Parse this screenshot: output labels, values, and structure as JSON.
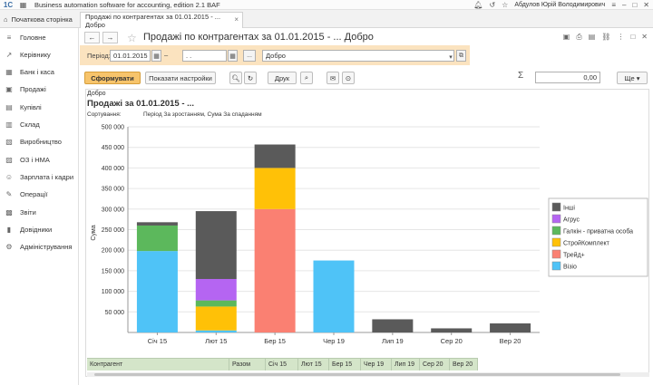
{
  "titlebar": {
    "logo": "1C",
    "app_title": "Business automation software for accounting, edition 2.1 BAF",
    "user": "Абдулов Юрій Володимирович"
  },
  "tabs": {
    "home_label": "Початкова сторінка",
    "doc_label": "Продажі по контрагентах за 01.01.2015 - ... Добро"
  },
  "sidebar": {
    "items": [
      {
        "label": "Головне",
        "icon": "menu-icon",
        "glyph": "≡"
      },
      {
        "label": "Керівнику",
        "icon": "trend-icon",
        "glyph": "↗"
      },
      {
        "label": "Банк і каса",
        "icon": "bank-icon",
        "glyph": "▦"
      },
      {
        "label": "Продажі",
        "icon": "cart-icon",
        "glyph": "▣"
      },
      {
        "label": "Купівлі",
        "icon": "purchase-icon",
        "glyph": "▤"
      },
      {
        "label": "Склад",
        "icon": "warehouse-icon",
        "glyph": "▥"
      },
      {
        "label": "Виробництво",
        "icon": "factory-icon",
        "glyph": "▧"
      },
      {
        "label": "ОЗ і НМА",
        "icon": "assets-icon",
        "glyph": "▨"
      },
      {
        "label": "Зарплата і кадри",
        "icon": "people-icon",
        "glyph": "☺"
      },
      {
        "label": "Операції",
        "icon": "operations-icon",
        "glyph": "✎"
      },
      {
        "label": "Звіти",
        "icon": "reports-icon",
        "glyph": "▩"
      },
      {
        "label": "Довідники",
        "icon": "books-icon",
        "glyph": "▮"
      },
      {
        "label": "Адміністрування",
        "icon": "admin-icon",
        "glyph": "⚙"
      }
    ]
  },
  "document": {
    "title": "Продажі по контрагентах за 01.01.2015 - ... Добро",
    "period_label": "Період:",
    "date_from": "01.01.2015",
    "date_to": "  .  .",
    "dash": "–",
    "ellipsis": "...",
    "org": "Добро",
    "form_button": "Сформувати",
    "settings_button": "Показати настройки",
    "print_button": "Друк",
    "sigma": "Σ",
    "sum_value": "0,00",
    "more_button": "Ще"
  },
  "report": {
    "org_small": "Добро",
    "header": "Продажі за 01.01.2015 - ...",
    "sort_label": "Сортування:",
    "sort_value": "Період За зростанням, Сума За спаданням"
  },
  "chart_data": {
    "type": "bar",
    "stacked": true,
    "ylabel": "Сума",
    "ylim": [
      0,
      500000
    ],
    "yticks": [
      50000,
      100000,
      150000,
      200000,
      250000,
      300000,
      350000,
      400000,
      450000,
      500000
    ],
    "ytick_labels": [
      "50 000",
      "100 000",
      "150 000",
      "200 000",
      "250 000",
      "300 000",
      "350 000",
      "400 000",
      "450 000",
      "500 000"
    ],
    "categories": [
      "Січ 15",
      "Лют 15",
      "Бер 15",
      "Чер 19",
      "Лип 19",
      "Сер 20",
      "Вер 20"
    ],
    "legend_position": "right",
    "series": [
      {
        "name": "Візіо",
        "color": "#4fc3f7",
        "values": [
          198000,
          5000,
          0,
          175000,
          0,
          0,
          0
        ]
      },
      {
        "name": "Трейд+",
        "color": "#fa8072",
        "values": [
          0,
          0,
          300000,
          0,
          0,
          0,
          0
        ]
      },
      {
        "name": "СтройКомплект",
        "color": "#ffc107",
        "values": [
          0,
          58000,
          100000,
          0,
          0,
          0,
          0
        ]
      },
      {
        "name": "Галкін - приватна особа",
        "color": "#5cb85c",
        "values": [
          62000,
          15000,
          0,
          0,
          0,
          0,
          0
        ]
      },
      {
        "name": "Агрус",
        "color": "#b565f2",
        "values": [
          0,
          52000,
          0,
          0,
          0,
          0,
          0
        ]
      },
      {
        "name": "Інші",
        "color": "#5a5a5a",
        "values": [
          8000,
          165000,
          57000,
          0,
          32000,
          10000,
          22000
        ]
      }
    ]
  },
  "bottom_table": {
    "headers": [
      "Контрагент",
      "Разом",
      "Січ 15",
      "Лют 15",
      "Бер 15",
      "Чер 19",
      "Лип 19",
      "Сер 20",
      "Вер 20"
    ]
  }
}
